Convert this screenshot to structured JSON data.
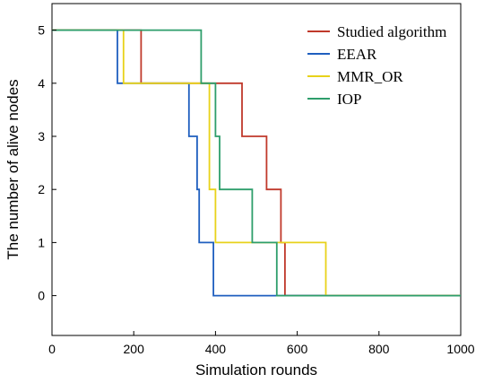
{
  "chart_data": {
    "type": "line",
    "title": "",
    "xlabel": "Simulation rounds",
    "ylabel": "The number of alive nodes",
    "xlim": [
      0,
      1000
    ],
    "ylim": [
      -0.75,
      5.5
    ],
    "x_ticks": [
      "0",
      "200",
      "400",
      "600",
      "800",
      "1000"
    ],
    "y_ticks": [
      "0",
      "1",
      "2",
      "3",
      "4",
      "5"
    ],
    "grid": false,
    "legend_position": "top-right",
    "series": [
      {
        "name": "Studied algorithm",
        "color": "#c0392b",
        "x": [
          0,
          218,
          218,
          465,
          465,
          525,
          525,
          560,
          560,
          570,
          570,
          1000
        ],
        "y": [
          5,
          5,
          4,
          4,
          3,
          3,
          2,
          2,
          1,
          1,
          0,
          0
        ]
      },
      {
        "name": "EEAR",
        "color": "#1f5fbf",
        "x": [
          0,
          160,
          160,
          335,
          335,
          355,
          355,
          360,
          360,
          395,
          395,
          1000
        ],
        "y": [
          5,
          5,
          4,
          4,
          3,
          3,
          2,
          2,
          1,
          1,
          0,
          0
        ]
      },
      {
        "name": "MMR_OR",
        "color": "#e8d21a",
        "x": [
          0,
          175,
          175,
          385,
          385,
          400,
          400,
          670,
          670,
          1000
        ],
        "y": [
          5,
          5,
          4,
          4,
          2,
          2,
          1,
          1,
          0,
          0
        ]
      },
      {
        "name": "IOP",
        "color": "#2e9e6b",
        "x": [
          0,
          365,
          365,
          400,
          400,
          410,
          410,
          490,
          490,
          550,
          550,
          1000
        ],
        "y": [
          5,
          5,
          4,
          4,
          3,
          3,
          2,
          2,
          1,
          1,
          0,
          0
        ]
      }
    ]
  }
}
